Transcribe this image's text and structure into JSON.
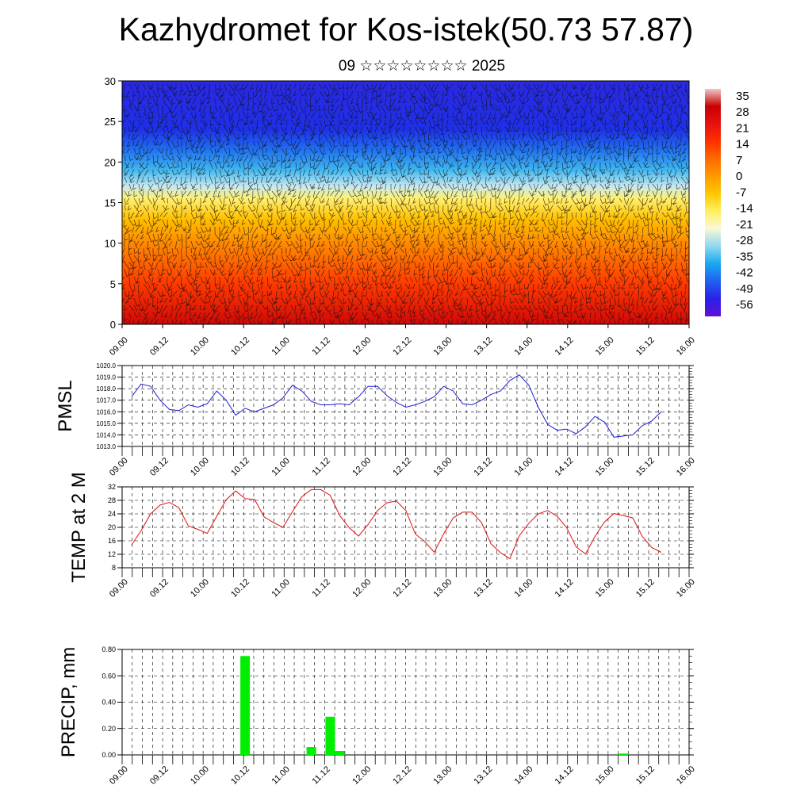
{
  "header": {
    "title": "Kazhydromet for Kos-istek(50.73 57.87)",
    "subtitle": "09 ☆☆☆☆☆☆☆☆ 2025"
  },
  "colors": {
    "pmsl_line": "#1f1fd0",
    "temp_line": "#e01010",
    "precip_bar": "#00ee00",
    "grid": "#000000"
  },
  "chart_data": [
    {
      "type": "heatmap",
      "title": "",
      "ylabel": "",
      "ylim": [
        0,
        30
      ],
      "yticks": [
        "0",
        "5",
        "10",
        "15",
        "20",
        "25",
        "30"
      ],
      "x_ticks": [
        "09.00",
        "09.12",
        "10.00",
        "10.12",
        "11.00",
        "11.12",
        "12.00",
        "12.12",
        "13.00",
        "13.12",
        "14.00",
        "14.12",
        "15.00",
        "15.12",
        "16.00"
      ],
      "colorbar_labels": [
        "35",
        "28",
        "21",
        "14",
        "7",
        "0",
        "-7",
        "-14",
        "-21",
        "-28",
        "-35",
        "-42",
        "-49",
        "-56"
      ],
      "colorbar_colors": [
        "#f0c8c8",
        "#c80000",
        "#e81010",
        "#ff3000",
        "#ff6a00",
        "#ff9a00",
        "#ffc800",
        "#fff060",
        "#f8f8d8",
        "#8fd8f0",
        "#18a8f0",
        "#2060f0",
        "#2a20e8",
        "#6010d8"
      ],
      "field_profile": [
        {
          "level": 0,
          "color": "#d00808"
        },
        {
          "level": 5,
          "color": "#ff3a00"
        },
        {
          "level": 10,
          "color": "#ff8a00"
        },
        {
          "level": 13,
          "color": "#ffc000"
        },
        {
          "level": 15.5,
          "color": "#fff070"
        },
        {
          "level": 17,
          "color": "#c8e8f0"
        },
        {
          "level": 19,
          "color": "#40b8f0"
        },
        {
          "level": 21.5,
          "color": "#2070f0"
        },
        {
          "level": 24,
          "color": "#1e30e8"
        },
        {
          "level": 30,
          "color": "#2a28e0"
        }
      ],
      "overlay": "wind barbs"
    },
    {
      "type": "line",
      "ylabel": "PMSL",
      "ylim": [
        1013,
        1020
      ],
      "yticks": [
        "1013.0",
        "1014.0",
        "1015.0",
        "1016.0",
        "1017.0",
        "1018.0",
        "1019.0",
        "1020.0"
      ],
      "x_ticks": [
        "09.00",
        "09.12",
        "10.00",
        "10.12",
        "11.00",
        "11.12",
        "12.00",
        "12.12",
        "13.00",
        "13.12",
        "14.00",
        "14.12",
        "15.00",
        "15.12",
        "16.00"
      ],
      "grid": true,
      "series": [
        {
          "values": [
            1017.3,
            1018.4,
            1018.2,
            1017.0,
            1016.2,
            1016.1,
            1016.6,
            1016.4,
            1016.7,
            1017.8,
            1017.0,
            1015.7,
            1016.3,
            1016.0,
            1016.3,
            1016.6,
            1017.2,
            1018.3,
            1017.8,
            1016.9,
            1016.6,
            1016.6,
            1016.7,
            1016.6,
            1017.3,
            1018.2,
            1018.2,
            1017.4,
            1016.8,
            1016.4,
            1016.6,
            1016.9,
            1017.3,
            1018.2,
            1017.8,
            1016.7,
            1016.6,
            1017.0,
            1017.5,
            1017.8,
            1018.7,
            1019.2,
            1018.3,
            1016.4,
            1014.9,
            1014.4,
            1014.5,
            1014.1,
            1014.7,
            1015.6,
            1015.1,
            1013.8,
            1013.9,
            1014.0,
            1014.8,
            1015.2,
            1016.0
          ]
        }
      ]
    },
    {
      "type": "line",
      "ylabel": "TEMP at 2 M",
      "ylim": [
        8,
        32
      ],
      "yticks": [
        "8",
        "12",
        "16",
        "20",
        "24",
        "28",
        "32"
      ],
      "x_ticks": [
        "09.00",
        "09.12",
        "10.00",
        "10.12",
        "11.00",
        "11.12",
        "12.00",
        "12.12",
        "13.00",
        "13.12",
        "14.00",
        "14.12",
        "15.00",
        "15.12",
        "16.00"
      ],
      "grid": true,
      "series": [
        {
          "values": [
            14.8,
            19,
            24,
            26.6,
            27.4,
            25.8,
            20.4,
            19.4,
            18.2,
            23.3,
            28.2,
            30.8,
            28.5,
            28.3,
            23.1,
            21.4,
            20,
            24.6,
            29.1,
            31.2,
            31.2,
            29.5,
            23.5,
            19.9,
            17.4,
            20.8,
            25,
            27.3,
            27.8,
            25,
            18,
            15.8,
            12.6,
            18.1,
            22.8,
            24.5,
            24.5,
            21.4,
            15.1,
            12.5,
            10.7,
            17.5,
            21.2,
            24,
            25,
            23.3,
            19.9,
            14.2,
            12.1,
            17.3,
            21.6,
            24.1,
            23.5,
            22.8,
            17.3,
            14,
            12.6
          ]
        }
      ]
    },
    {
      "type": "bar",
      "ylabel": "PRECIP, mm",
      "ylim": [
        0,
        0.8
      ],
      "yticks": [
        "0.00",
        "0.20",
        "0.40",
        "0.60",
        "0.80"
      ],
      "x_ticks": [
        "09.00",
        "09.12",
        "10.00",
        "10.12",
        "11.00",
        "11.12",
        "12.00",
        "12.12",
        "13.00",
        "13.12",
        "14.00",
        "14.12",
        "15.00",
        "15.12",
        "16.00"
      ],
      "grid": true,
      "series": [
        {
          "values": [
            0,
            0,
            0,
            0,
            0,
            0,
            0,
            0,
            0,
            0,
            0,
            0,
            0.75,
            0,
            0,
            0,
            0,
            0,
            0,
            0.06,
            0,
            0.29,
            0.03,
            0,
            0,
            0,
            0,
            0,
            0,
            0,
            0,
            0,
            0,
            0,
            0,
            0,
            0,
            0,
            0,
            0,
            0,
            0,
            0,
            0,
            0,
            0,
            0,
            0,
            0,
            0,
            0,
            0,
            0.01,
            0,
            0,
            0,
            0
          ]
        }
      ]
    }
  ]
}
